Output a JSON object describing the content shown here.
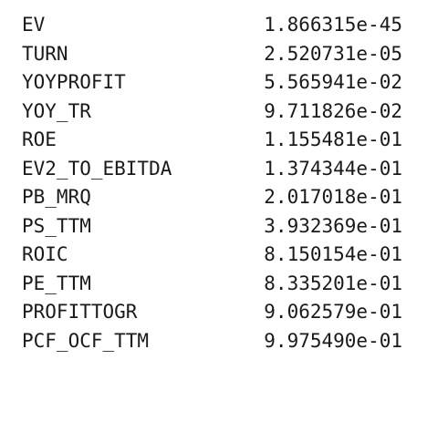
{
  "output": {
    "rows": [
      {
        "name": "EV",
        "value": "1.866315e-45"
      },
      {
        "name": "TURN",
        "value": "2.520731e-05"
      },
      {
        "name": "YOYPROFIT",
        "value": "5.565941e-02"
      },
      {
        "name": "YOY_TR",
        "value": "9.711826e-02"
      },
      {
        "name": "ROE",
        "value": "1.155481e-01"
      },
      {
        "name": "EV2_TO_EBITDA",
        "value": "1.374344e-01"
      },
      {
        "name": "PB_MRQ",
        "value": "2.017018e-01"
      },
      {
        "name": "PS_TTM",
        "value": "3.932369e-01"
      },
      {
        "name": "ROIC",
        "value": "8.150154e-01"
      },
      {
        "name": "PE_TTM",
        "value": "8.335201e-01"
      },
      {
        "name": "PROFITTOGR",
        "value": "9.062579e-01"
      },
      {
        "name": "PCF_OCF_TTM",
        "value": "9.975490e-01"
      }
    ]
  }
}
